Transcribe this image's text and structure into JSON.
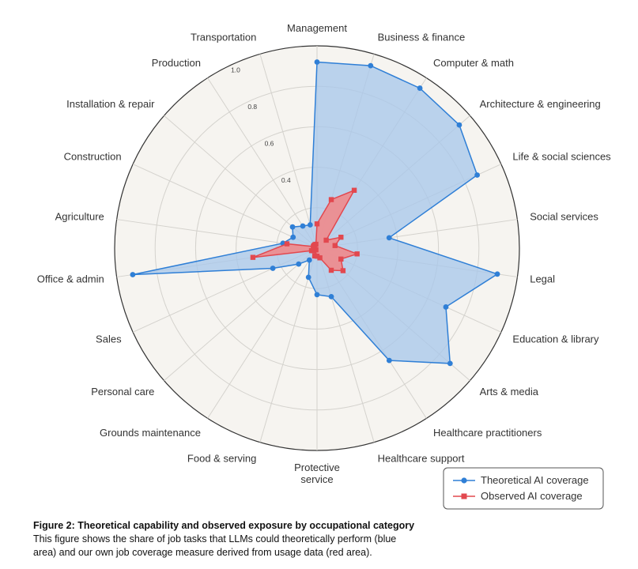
{
  "chart_data": {
    "type": "radar",
    "categories": [
      "Management",
      "Business & finance",
      "Computer & math",
      "Architecture & engineering",
      "Life & social sciences",
      "Social services",
      "Legal",
      "Education & library",
      "Arts & media",
      "Healthcare practitioners",
      "Healthcare support",
      "Protective service",
      "Food & serving",
      "Grounds maintenance",
      "Personal care",
      "Sales",
      "Office & admin",
      "Agriculture",
      "Construction",
      "Installation & repair",
      "Production",
      "Transportation"
    ],
    "series": [
      {
        "name": "Theoretical AI coverage",
        "color": "#2f7fd6",
        "fill": "#a9c8ea",
        "marker": "circle",
        "values": [
          0.92,
          0.94,
          0.94,
          0.93,
          0.87,
          0.36,
          0.9,
          0.7,
          0.87,
          0.66,
          0.25,
          0.23,
          0.15,
          0.07,
          0.12,
          0.24,
          0.92,
          0.17,
          0.13,
          0.16,
          0.13,
          0.12
        ]
      },
      {
        "name": "Observed AI coverage",
        "color": "#e2484f",
        "fill": "#ef8a8c",
        "marker": "square",
        "values": [
          0.12,
          0.25,
          0.34,
          0.06,
          0.13,
          0.09,
          0.2,
          0.13,
          0.17,
          0.13,
          0.05,
          0.04,
          0.04,
          0.01,
          0.02,
          0.03,
          0.32,
          0.15,
          0.02,
          0.02,
          0.02,
          0.02
        ]
      }
    ],
    "rlim": [
      0,
      1
    ],
    "rticks": [
      0.2,
      0.4,
      0.6,
      0.8,
      1.0
    ],
    "rtick_labels": [
      "",
      "0.4",
      "0.6",
      "0.8",
      "1.0"
    ],
    "legend_position": "bottom-right",
    "grid": true
  },
  "caption": {
    "title": "Figure 2: Theoretical capability and observed exposure by occupational category",
    "body": "This figure shows the share of job tasks that LLMs could theoretically perform (blue area) and our own job coverage measure derived from usage data (red area)."
  },
  "labels": {
    "protective_line1": "Protective",
    "protective_line2": "service"
  }
}
